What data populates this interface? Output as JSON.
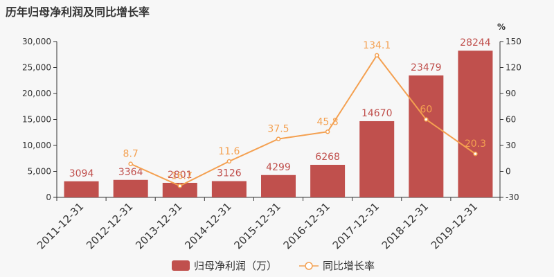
{
  "chart_data": {
    "type": "bar+line",
    "title": "历年归母净利润及同比增长率",
    "categories": [
      "2011-12-31",
      "2012-12-31",
      "2013-12-31",
      "2014-12-31",
      "2015-12-31",
      "2016-12-31",
      "2017-12-31",
      "2018-12-31",
      "2019-12-31"
    ],
    "series": [
      {
        "name": "归母净利润（万）",
        "type": "bar",
        "axis": "left",
        "values": [
          3094,
          3364,
          2801,
          3126,
          4299,
          6268,
          14670,
          23479,
          28244
        ],
        "labels": [
          "3094",
          "3364",
          "2801",
          "3126",
          "4299",
          "6268",
          "14670",
          "23479",
          "28244"
        ]
      },
      {
        "name": "同比增长率",
        "type": "line",
        "axis": "right",
        "values": [
          null,
          8.7,
          -16.7,
          11.6,
          37.5,
          45.8,
          134.1,
          60,
          20.3
        ],
        "labels": [
          "",
          "8.7",
          "-16.7",
          "11.6",
          "37.5",
          "45.8",
          "134.1",
          "60",
          "20.3"
        ]
      }
    ],
    "y_left": {
      "min": 0,
      "max": 30000,
      "ticks": [
        0,
        5000,
        10000,
        15000,
        20000,
        25000,
        30000
      ],
      "tick_labels": [
        "0",
        "5,000",
        "10,000",
        "15,000",
        "20,000",
        "25,000",
        "30,000"
      ]
    },
    "y_right": {
      "min": -30,
      "max": 150,
      "ticks": [
        -30,
        0,
        30,
        60,
        90,
        120,
        150
      ],
      "tick_labels": [
        "-30",
        "0",
        "30",
        "60",
        "90",
        "120",
        "150"
      ],
      "unit": "%"
    },
    "legend_position": "bottom-center",
    "colors": {
      "bar": "#c0504d",
      "line": "#f4a050",
      "bar_label": "#c0504d",
      "line_label": "#f4a050",
      "axis_text": "#333333",
      "axis_line": "#333333"
    }
  }
}
